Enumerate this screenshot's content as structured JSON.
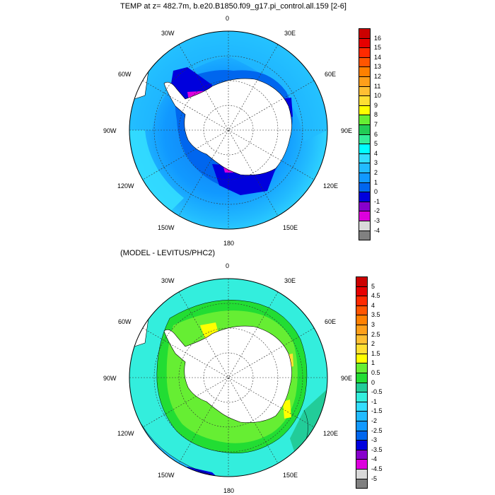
{
  "top": {
    "title": "TEMP at z= 482.7m, b.e20.B1850.f09_g17.pi_control.all.159 [2-6]",
    "lon_labels": {
      "l0": "0",
      "l30e": "30E",
      "l60e": "60E",
      "l90e": "90E",
      "l120e": "120E",
      "l150e": "150E",
      "l180": "180",
      "l150w": "150W",
      "l120w": "120W",
      "l90w": "90W",
      "l60w": "60W",
      "l30w": "30W"
    },
    "colorbar": {
      "labels": [
        "16",
        "15",
        "14",
        "13",
        "12",
        "11",
        "10",
        "9",
        "8",
        "7",
        "6",
        "5",
        "4",
        "3",
        "2",
        "1",
        "0",
        "-1",
        "-2",
        "-3",
        "-4"
      ],
      "colors": [
        "#cc0000",
        "#e60000",
        "#ff2a00",
        "#ff5500",
        "#ff8000",
        "#ff9f1a",
        "#ffbf33",
        "#ffdf33",
        "#ffff00",
        "#66ee33",
        "#22cc55",
        "#33ee99",
        "#00ffff",
        "#33ddff",
        "#22bbff",
        "#1199ff",
        "#0066ee",
        "#0000dd",
        "#8800cc",
        "#dd00dd",
        "#d9d9d9",
        "#808080"
      ]
    }
  },
  "bottom": {
    "title": "(MODEL - LEVITUS/PHC2)",
    "lon_labels": {
      "l0": "0",
      "l30e": "30E",
      "l60e": "60E",
      "l90e": "90E",
      "l120e": "120E",
      "l150e": "150E",
      "l180": "180",
      "l150w": "150W",
      "l120w": "120W",
      "l90w": "90W",
      "l60w": "60W",
      "l30w": "30W"
    },
    "colorbar": {
      "labels": [
        "5",
        "4.5",
        "4",
        "3.5",
        "3",
        "2.5",
        "2",
        "1.5",
        "1",
        "0.5",
        "0",
        "-0.5",
        "-1",
        "-1.5",
        "-2",
        "-2.5",
        "-3",
        "-3.5",
        "-4",
        "-4.5",
        "-5"
      ],
      "colors": [
        "#cc0000",
        "#e60000",
        "#ff2a00",
        "#ff5500",
        "#ff8000",
        "#ff9f1a",
        "#ffbf33",
        "#ffdf33",
        "#ffff00",
        "#66ee33",
        "#22dd33",
        "#22cc99",
        "#33eedd",
        "#33ddff",
        "#22bbff",
        "#1199ff",
        "#0066ee",
        "#0000dd",
        "#8800cc",
        "#dd00dd",
        "#d9d9d9",
        "#808080"
      ]
    }
  }
}
